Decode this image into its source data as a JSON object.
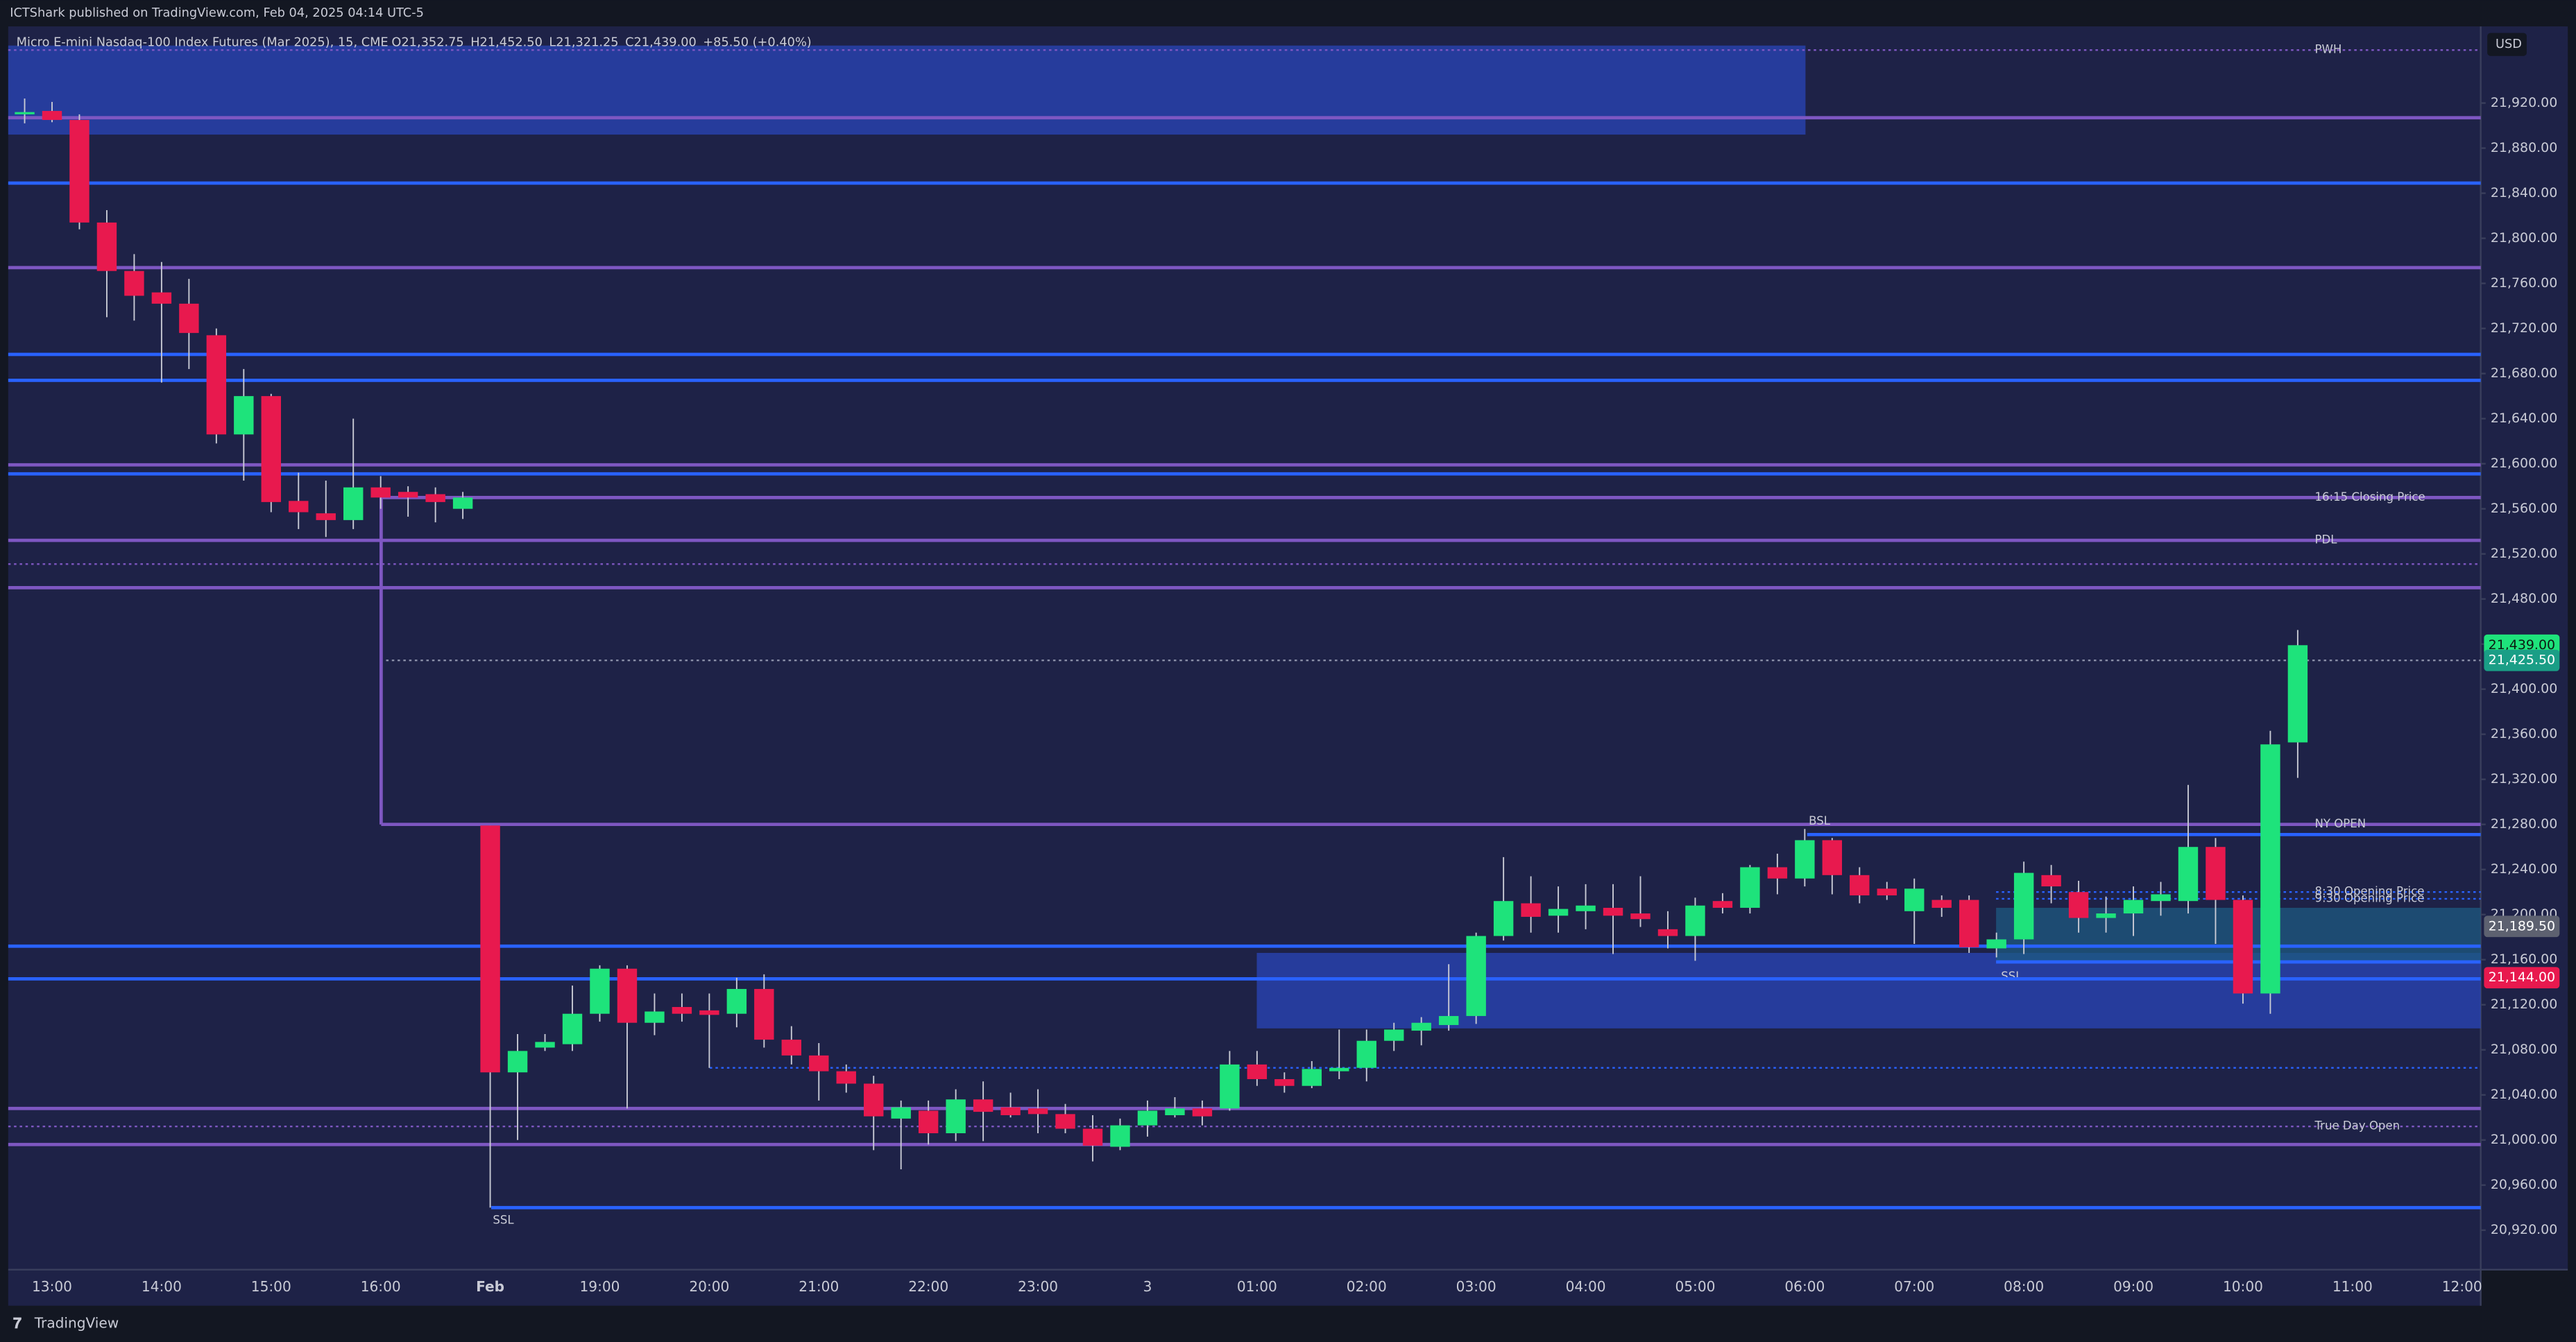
{
  "header": {
    "published": "ICTShark published on TradingView.com, Feb 04, 2025 04:14 UTC-5",
    "symbol": "Micro E-mini Nasdaq-100 Index Futures (Mar 2025), 15, CME",
    "ohlc": [
      {
        "key": "O",
        "value": "21,352.75"
      },
      {
        "key": "H",
        "value": "21,452.50"
      },
      {
        "key": "L",
        "value": "21,321.25"
      },
      {
        "key": "C",
        "value": "21,439.00"
      }
    ],
    "change": "+85.50 (+0.40%)"
  },
  "footer": {
    "brand": "TradingView"
  },
  "chart_data": {
    "type": "candlestick",
    "currency": "USD",
    "up_color": "#1ee37b",
    "down_color": "#e8194e",
    "x_labels": [
      "13:00",
      "14:00",
      "15:00",
      "16:00",
      "Feb",
      "19:00",
      "20:00",
      "21:00",
      "22:00",
      "23:00",
      "3",
      "01:00",
      "02:00",
      "03:00",
      "04:00",
      "05:00",
      "06:00",
      "07:00",
      "08:00",
      "09:00",
      "10:00",
      "11:00",
      "12:00"
    ],
    "open": [
      21910,
      21913,
      21905,
      21814,
      21771,
      21752,
      21742,
      21714,
      21626,
      21660,
      21567,
      21556,
      21550,
      21579,
      21575,
      21573,
      21560,
      21279,
      21060,
      21082,
      21085,
      21112,
      21152,
      21104,
      21118,
      21115,
      21112,
      21134,
      21089,
      21075,
      21061,
      21050,
      21019,
      21026,
      21006,
      21036,
      21029,
      21028,
      21023,
      21010,
      20994,
      21013,
      21022,
      21028,
      21028,
      21067,
      21054,
      21048,
      21061,
      21064,
      21088,
      21097,
      21102,
      21110,
      21181,
      21210,
      21199,
      21203,
      21206,
      21201,
      21187,
      21181,
      21212,
      21206,
      21242,
      21232,
      21266,
      21235,
      21223,
      21203,
      21213,
      21213,
      21170,
      21178,
      21235,
      21220,
      21197,
      21201,
      21212,
      21212,
      21260,
      21213,
      21130,
      21352.75
    ],
    "high": [
      21924,
      21921,
      21910,
      21825,
      21786,
      21779,
      21764,
      21720,
      21684,
      21662,
      21592,
      21585,
      21640,
      21589,
      21580,
      21579,
      21575,
      21279,
      21094,
      21094,
      21137,
      21155,
      21155,
      21130,
      21130,
      21130,
      21144,
      21147,
      21101,
      21086,
      21067,
      21057,
      21035,
      21035,
      21045,
      21052,
      21042,
      21045,
      21032,
      21022,
      21019,
      21035,
      21038,
      21035,
      21079,
      21079,
      21060,
      21070,
      21098,
      21098,
      21104,
      21109,
      21156,
      21184,
      21251,
      21234,
      21225,
      21227,
      21227,
      21234,
      21203,
      21215,
      21219,
      21244,
      21254,
      21276,
      21268,
      21242,
      21229,
      21232,
      21217,
      21217,
      21184,
      21247,
      21244,
      21230,
      21216,
      21225,
      21229,
      21315,
      21268,
      21217,
      21363,
      21452.5
    ],
    "low": [
      21902,
      21903,
      21808,
      21730,
      21727,
      21672,
      21684,
      21618,
      21585,
      21557,
      21542,
      21535,
      21542,
      21560,
      21553,
      21548,
      21551,
      20940,
      21000,
      21079,
      21079,
      21105,
      21028,
      21093,
      21105,
      21064,
      21100,
      21082,
      21067,
      21035,
      21042,
      20991,
      20974,
      20996,
      20999,
      20999,
      21020,
      21006,
      21006,
      20981,
      20991,
      21003,
      21020,
      21013,
      21026,
      21048,
      21042,
      21046,
      21054,
      21052,
      21079,
      21084,
      21097,
      21103,
      21177,
      21184,
      21184,
      21187,
      21165,
      21189,
      21170,
      21159,
      21201,
      21201,
      21218,
      21225,
      21218,
      21210,
      21213,
      21174,
      21198,
      21166,
      21162,
      21165,
      21210,
      21184,
      21184,
      21181,
      21199,
      21201,
      21174,
      21121,
      21112,
      21321.25
    ],
    "close": [
      21912,
      21905,
      21814,
      21771,
      21749,
      21742,
      21716,
      21626,
      21660,
      21566,
      21557,
      21550,
      21579,
      21570,
      21570,
      21566,
      21570,
      21060,
      21079,
      21087,
      21112,
      21152,
      21104,
      21114,
      21112,
      21111,
      21134,
      21089,
      21075,
      21061,
      21050,
      21021,
      21029,
      21006,
      21036,
      21025,
      21022,
      21023,
      21010,
      20995,
      21013,
      21026,
      21028,
      21021,
      21067,
      21054,
      21048,
      21063,
      21064,
      21088,
      21098,
      21104,
      21110,
      21181,
      21212,
      21198,
      21205,
      21208,
      21199,
      21196,
      21181,
      21208,
      21206,
      21242,
      21232,
      21266,
      21235,
      21217,
      21217,
      21223,
      21206,
      21171,
      21178,
      21237,
      21225,
      21197,
      21201,
      21213,
      21218,
      21260,
      21213,
      21130,
      21351,
      21439
    ],
    "ylim": [
      20885,
      21988
    ],
    "yticks": [
      {
        "value": 20920,
        "label": "20,920.00"
      },
      {
        "value": 20960,
        "label": "20,960.00"
      },
      {
        "value": 21000,
        "label": "21,000.00"
      },
      {
        "value": 21040,
        "label": "21,040.00"
      },
      {
        "value": 21080,
        "label": "21,080.00"
      },
      {
        "value": 21120,
        "label": "21,120.00"
      },
      {
        "value": 21160,
        "label": "21,160.00"
      },
      {
        "value": 21200,
        "label": "21,200.00"
      },
      {
        "value": 21240,
        "label": "21,240.00"
      },
      {
        "value": 21280,
        "label": "21,280.00"
      },
      {
        "value": 21320,
        "label": "21,320.00"
      },
      {
        "value": 21360,
        "label": "21,360.00"
      },
      {
        "value": 21400,
        "label": "21,400.00"
      },
      {
        "value": 21440,
        "label": "21,440.00"
      },
      {
        "value": 21480,
        "label": "21,480.00"
      },
      {
        "value": 21520,
        "label": "21,520.00"
      },
      {
        "value": 21560,
        "label": "21,560.00"
      },
      {
        "value": 21600,
        "label": "21,600.00"
      },
      {
        "value": 21640,
        "label": "21,640.00"
      },
      {
        "value": 21680,
        "label": "21,680.00"
      },
      {
        "value": 21720,
        "label": "21,720.00"
      },
      {
        "value": 21760,
        "label": "21,760.00"
      },
      {
        "value": 21800,
        "label": "21,800.00"
      },
      {
        "value": 21840,
        "label": "21,840.00"
      },
      {
        "value": 21880,
        "label": "21,880.00"
      },
      {
        "value": 21920,
        "label": "21,920.00"
      }
    ],
    "zones": [
      {
        "top": 21971,
        "bottom": 21892,
        "color": "#2a45b8"
      },
      {
        "top": 21166,
        "bottom": 21099,
        "color": "#2a45b8"
      },
      {
        "top": 21206,
        "bottom": 21159,
        "color": "#1e5a80"
      }
    ],
    "levels": [
      {
        "price": 21967,
        "color": "#7e57c2",
        "style": "dotted",
        "label": "PWH"
      },
      {
        "price": 21907,
        "color": "#7e57c2",
        "style": "solid"
      },
      {
        "price": 21849,
        "color": "#2962ff",
        "style": "solid"
      },
      {
        "price": 21774,
        "color": "#7e57c2",
        "style": "solid"
      },
      {
        "price": 21697,
        "color": "#2962ff",
        "style": "solid"
      },
      {
        "price": 21674,
        "color": "#2962ff",
        "style": "solid"
      },
      {
        "price": 21599,
        "color": "#7e57c2",
        "style": "solid"
      },
      {
        "price": 21591,
        "color": "#2962ff",
        "style": "solid"
      },
      {
        "price": 21570,
        "color": "#7e57c2",
        "style": "solid",
        "label": "16:15 Closing Price"
      },
      {
        "price": 21532,
        "color": "#7e57c2",
        "style": "solid",
        "label": "PDL"
      },
      {
        "price": 21511,
        "color": "#7e57c2",
        "style": "dotted"
      },
      {
        "price": 21490,
        "color": "#7e57c2",
        "style": "solid"
      },
      {
        "price": 21280,
        "color": "#7e57c2",
        "style": "solid",
        "label": "NY OPEN"
      },
      {
        "price": 21271,
        "color": "#2962ff",
        "style": "solid",
        "label": "BSL"
      },
      {
        "price": 21220,
        "color": "#2962ff",
        "style": "dotted",
        "label": "8:30 Opening Price"
      },
      {
        "price": 21214,
        "color": "#2962ff",
        "style": "dotted",
        "label": "9:30 Opening Price"
      },
      {
        "price": 21172,
        "color": "#2962ff",
        "style": "solid"
      },
      {
        "price": 21158,
        "color": "#2962ff",
        "style": "solid",
        "label": "SSL"
      },
      {
        "price": 21143,
        "color": "#2962ff",
        "style": "solid"
      },
      {
        "price": 21064,
        "color": "#2962ff",
        "style": "dotted"
      },
      {
        "price": 21028,
        "color": "#7e57c2",
        "style": "solid"
      },
      {
        "price": 21012,
        "color": "#7e57c2",
        "style": "dotted",
        "label": "True Day Open"
      },
      {
        "price": 20996,
        "color": "#7e57c2",
        "style": "solid"
      },
      {
        "price": 20940,
        "color": "#2962ff",
        "style": "solid",
        "label": "SSL"
      },
      {
        "price": 21425.5,
        "color": "#8a8fa8",
        "style": "dotted"
      }
    ],
    "badges": [
      {
        "value": 21439,
        "label": "21,439.00",
        "color": "#1ee37b"
      },
      {
        "value": 21425.5,
        "label": "21,425.50",
        "color": "#1a9e86"
      },
      {
        "value": 21189.5,
        "label": "21,189.50",
        "color": "#5d6170"
      },
      {
        "value": 21144,
        "label": "21,144.00",
        "color": "#e8194e"
      }
    ]
  }
}
